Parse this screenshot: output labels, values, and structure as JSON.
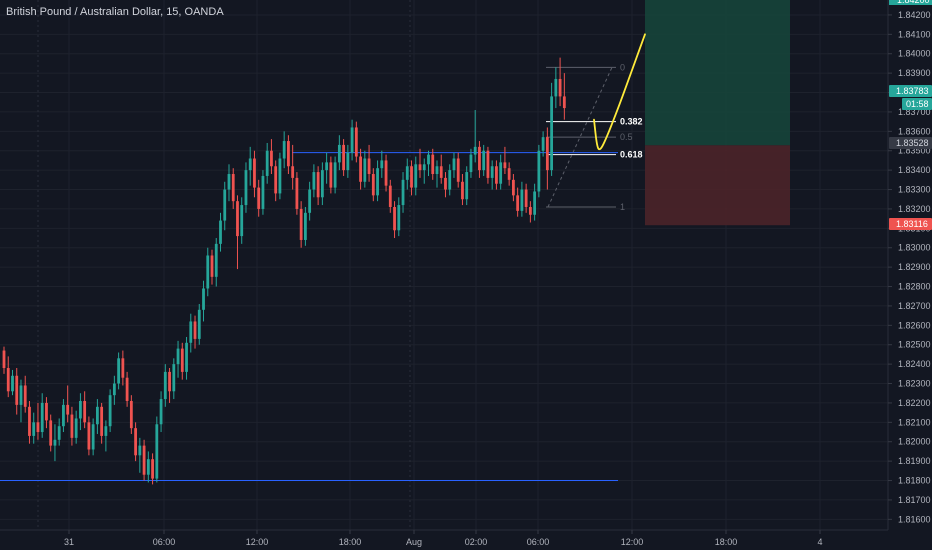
{
  "header": {
    "title": "British Pound / Australian Dollar, 15, OANDA"
  },
  "colors": {
    "background": "#131722",
    "up": "#26a69a",
    "down": "#ef5350",
    "grid": "#1e222d",
    "axis_text": "#b2b5be",
    "hline": "#2962ff",
    "target_zone": "#16443a",
    "stop_zone": "#4b2329",
    "sketch": "#ffeb3b"
  },
  "chart_data": {
    "type": "candlestick",
    "title": "British Pound / Australian Dollar, 15, OANDA",
    "symbol": "GBPAUD",
    "interval": "15",
    "source": "OANDA",
    "ylim": [
      1.8155,
      1.8428
    ],
    "y_ticks": [
      "1.84200",
      "1.84100",
      "1.84000",
      "1.83900",
      "1.83800",
      "1.83700",
      "1.83600",
      "1.83500",
      "1.83400",
      "1.83300",
      "1.83200",
      "1.83100",
      "1.83000",
      "1.82900",
      "1.82800",
      "1.82700",
      "1.82600",
      "1.82500",
      "1.82400",
      "1.82300",
      "1.82200",
      "1.82100",
      "1.82000",
      "1.81900",
      "1.81800",
      "1.81700",
      "1.81600"
    ],
    "x_ticks": [
      "31",
      "06:00",
      "12:00",
      "18:00",
      "Aug",
      "02:00",
      "06:00",
      "12:00",
      "18:00",
      "4"
    ],
    "price_badges": [
      {
        "label": "1.83783",
        "value": 1.83783,
        "color": "#26a69a",
        "text_color": "#ffffff"
      },
      {
        "label": "01:58",
        "value": 1.8372,
        "color": "#26a69a",
        "text_color": "#ffffff"
      },
      {
        "label": "1.83528",
        "value": 1.83528,
        "color": "#363a45",
        "text_color": "#d1d4dc"
      },
      {
        "label": "1.83116",
        "value": 1.83116,
        "color": "#ef5350",
        "text_color": "#ffffff"
      }
    ],
    "top_badge": "1.84200",
    "horizontal_lines": [
      {
        "value": 1.8349
      },
      {
        "value": 1.818
      }
    ],
    "fib_levels": [
      {
        "label": "0",
        "value": 1.8393
      },
      {
        "label": "0.382",
        "value": 1.8365,
        "emphasis": true
      },
      {
        "label": "0.5",
        "value": 1.8357,
        "emphasis": false
      },
      {
        "label": "0.618",
        "value": 1.8348,
        "emphasis": true
      },
      {
        "label": "1",
        "value": 1.8321
      }
    ],
    "position": {
      "entry": 1.83528,
      "target": 1.8428,
      "stop": 1.83116
    },
    "sketch_path": [
      [
        1.8366,
        0
      ],
      [
        1.8352,
        1
      ],
      [
        1.835,
        2
      ],
      [
        1.8356,
        3
      ],
      [
        1.8373,
        4
      ],
      [
        1.8393,
        5
      ],
      [
        1.841,
        6
      ]
    ],
    "ohlc": [
      [
        1.8247,
        1.8249,
        1.8235,
        1.8238
      ],
      [
        1.8238,
        1.8244,
        1.8223,
        1.8226
      ],
      [
        1.8226,
        1.8237,
        1.8224,
        1.8234
      ],
      [
        1.8234,
        1.8238,
        1.8214,
        1.8219
      ],
      [
        1.8219,
        1.8232,
        1.821,
        1.8229
      ],
      [
        1.8229,
        1.8234,
        1.8215,
        1.8218
      ],
      [
        1.8218,
        1.8221,
        1.8199,
        1.8203
      ],
      [
        1.8203,
        1.8215,
        1.8199,
        1.821
      ],
      [
        1.821,
        1.822,
        1.8201,
        1.8205
      ],
      [
        1.8205,
        1.8225,
        1.8202,
        1.822
      ],
      [
        1.822,
        1.8223,
        1.8207,
        1.8211
      ],
      [
        1.8211,
        1.8214,
        1.8195,
        1.8198
      ],
      [
        1.8198,
        1.8209,
        1.819,
        1.8201
      ],
      [
        1.8201,
        1.8212,
        1.8198,
        1.8208
      ],
      [
        1.8208,
        1.8222,
        1.8205,
        1.8219
      ],
      [
        1.8219,
        1.8229,
        1.821,
        1.8214
      ],
      [
        1.8214,
        1.8218,
        1.8198,
        1.8202
      ],
      [
        1.8202,
        1.8216,
        1.8199,
        1.8212
      ],
      [
        1.8212,
        1.8225,
        1.8206,
        1.8221
      ],
      [
        1.8221,
        1.8226,
        1.8207,
        1.821
      ],
      [
        1.821,
        1.8213,
        1.8193,
        1.8196
      ],
      [
        1.8196,
        1.8212,
        1.8193,
        1.8209
      ],
      [
        1.8209,
        1.8222,
        1.8204,
        1.8218
      ],
      [
        1.8218,
        1.822,
        1.8199,
        1.8203
      ],
      [
        1.8203,
        1.8211,
        1.8195,
        1.8208
      ],
      [
        1.8208,
        1.8227,
        1.8205,
        1.8224
      ],
      [
        1.8224,
        1.8234,
        1.8219,
        1.823
      ],
      [
        1.823,
        1.8246,
        1.8227,
        1.8243
      ],
      [
        1.8243,
        1.8247,
        1.8229,
        1.8233
      ],
      [
        1.8233,
        1.8236,
        1.8218,
        1.8221
      ],
      [
        1.8221,
        1.8224,
        1.8204,
        1.8207
      ],
      [
        1.8207,
        1.821,
        1.819,
        1.8193
      ],
      [
        1.8193,
        1.8202,
        1.8184,
        1.8198
      ],
      [
        1.8198,
        1.8201,
        1.818,
        1.8183
      ],
      [
        1.8183,
        1.8195,
        1.8179,
        1.8191
      ],
      [
        1.8191,
        1.8194,
        1.8178,
        1.8181
      ],
      [
        1.8181,
        1.8213,
        1.8179,
        1.8209
      ],
      [
        1.8209,
        1.8226,
        1.8205,
        1.8222
      ],
      [
        1.8222,
        1.824,
        1.8218,
        1.8236
      ],
      [
        1.8236,
        1.8238,
        1.822,
        1.8226
      ],
      [
        1.8226,
        1.8243,
        1.8222,
        1.824
      ],
      [
        1.824,
        1.8252,
        1.8233,
        1.8248
      ],
      [
        1.8248,
        1.8251,
        1.8232,
        1.8236
      ],
      [
        1.8236,
        1.8254,
        1.8232,
        1.8251
      ],
      [
        1.8251,
        1.8266,
        1.8246,
        1.8262
      ],
      [
        1.8262,
        1.8265,
        1.8248,
        1.8253
      ],
      [
        1.8253,
        1.8271,
        1.825,
        1.8268
      ],
      [
        1.8268,
        1.8283,
        1.8262,
        1.8279
      ],
      [
        1.8279,
        1.83,
        1.8275,
        1.8296
      ],
      [
        1.8296,
        1.8299,
        1.8281,
        1.8285
      ],
      [
        1.8285,
        1.8305,
        1.828,
        1.8302
      ],
      [
        1.8302,
        1.8318,
        1.8298,
        1.8314
      ],
      [
        1.8314,
        1.8334,
        1.8309,
        1.833
      ],
      [
        1.833,
        1.8343,
        1.8324,
        1.8338
      ],
      [
        1.8338,
        1.8341,
        1.832,
        1.8324
      ],
      [
        1.8324,
        1.8327,
        1.8289,
        1.8306
      ],
      [
        1.8306,
        1.8326,
        1.8302,
        1.8322
      ],
      [
        1.8322,
        1.8344,
        1.8318,
        1.834
      ],
      [
        1.834,
        1.8352,
        1.8332,
        1.8346
      ],
      [
        1.8346,
        1.835,
        1.8326,
        1.8331
      ],
      [
        1.8331,
        1.8335,
        1.8316,
        1.832
      ],
      [
        1.832,
        1.834,
        1.8317,
        1.8337
      ],
      [
        1.8337,
        1.8354,
        1.8333,
        1.835
      ],
      [
        1.835,
        1.8356,
        1.8338,
        1.8342
      ],
      [
        1.8342,
        1.8345,
        1.8324,
        1.8328
      ],
      [
        1.8328,
        1.8349,
        1.8325,
        1.8346
      ],
      [
        1.8346,
        1.836,
        1.8341,
        1.8355
      ],
      [
        1.8355,
        1.8358,
        1.8338,
        1.8342
      ],
      [
        1.8342,
        1.8353,
        1.833,
        1.8336
      ],
      [
        1.8336,
        1.8339,
        1.8317,
        1.832
      ],
      [
        1.832,
        1.8324,
        1.83,
        1.8304
      ],
      [
        1.8304,
        1.8321,
        1.8301,
        1.8318
      ],
      [
        1.8318,
        1.8334,
        1.8314,
        1.833
      ],
      [
        1.833,
        1.8343,
        1.8326,
        1.8339
      ],
      [
        1.8339,
        1.8342,
        1.8322,
        1.8326
      ],
      [
        1.8326,
        1.8344,
        1.8322,
        1.834
      ],
      [
        1.834,
        1.8349,
        1.8333,
        1.8344
      ],
      [
        1.8344,
        1.8347,
        1.8328,
        1.8331
      ],
      [
        1.8331,
        1.8347,
        1.8328,
        1.8344
      ],
      [
        1.8344,
        1.8358,
        1.834,
        1.8353
      ],
      [
        1.8353,
        1.8356,
        1.8337,
        1.834
      ],
      [
        1.834,
        1.8353,
        1.8336,
        1.8349
      ],
      [
        1.8349,
        1.8366,
        1.8345,
        1.8362
      ],
      [
        1.8362,
        1.8365,
        1.8344,
        1.8347
      ],
      [
        1.8347,
        1.8351,
        1.833,
        1.8334
      ],
      [
        1.8334,
        1.835,
        1.8331,
        1.8346
      ],
      [
        1.8346,
        1.8353,
        1.8334,
        1.8338
      ],
      [
        1.8338,
        1.8341,
        1.8324,
        1.8327
      ],
      [
        1.8327,
        1.8345,
        1.8324,
        1.8341
      ],
      [
        1.8341,
        1.835,
        1.8336,
        1.8345
      ],
      [
        1.8345,
        1.8348,
        1.8329,
        1.8332
      ],
      [
        1.8332,
        1.8335,
        1.8318,
        1.8321
      ],
      [
        1.8321,
        1.8324,
        1.8305,
        1.8309
      ],
      [
        1.8309,
        1.8326,
        1.8306,
        1.8322
      ],
      [
        1.8322,
        1.8339,
        1.8318,
        1.8335
      ],
      [
        1.8335,
        1.8346,
        1.833,
        1.8342
      ],
      [
        1.8342,
        1.8345,
        1.8327,
        1.8331
      ],
      [
        1.8331,
        1.8347,
        1.8327,
        1.8343
      ],
      [
        1.8343,
        1.8351,
        1.8336,
        1.834
      ],
      [
        1.834,
        1.8346,
        1.8333,
        1.8343
      ],
      [
        1.8343,
        1.835,
        1.8337,
        1.8348
      ],
      [
        1.8348,
        1.8351,
        1.8335,
        1.8338
      ],
      [
        1.8338,
        1.8345,
        1.8331,
        1.8342
      ],
      [
        1.8342,
        1.8348,
        1.8333,
        1.8336
      ],
      [
        1.8336,
        1.8339,
        1.8326,
        1.833
      ],
      [
        1.833,
        1.8343,
        1.8327,
        1.834
      ],
      [
        1.834,
        1.8349,
        1.8336,
        1.8346
      ],
      [
        1.8346,
        1.8349,
        1.8331,
        1.8334
      ],
      [
        1.8334,
        1.8338,
        1.8322,
        1.8325
      ],
      [
        1.8325,
        1.8342,
        1.8322,
        1.8339
      ],
      [
        1.8339,
        1.8351,
        1.8336,
        1.8348
      ],
      [
        1.8348,
        1.8371,
        1.8344,
        1.8352
      ],
      [
        1.8352,
        1.8355,
        1.8336,
        1.834
      ],
      [
        1.834,
        1.8353,
        1.8337,
        1.835
      ],
      [
        1.835,
        1.8352,
        1.8333,
        1.8336
      ],
      [
        1.8336,
        1.8345,
        1.833,
        1.8342
      ],
      [
        1.8342,
        1.8345,
        1.833,
        1.8333
      ],
      [
        1.8333,
        1.8348,
        1.833,
        1.8344
      ],
      [
        1.8344,
        1.8352,
        1.8338,
        1.8341
      ],
      [
        1.8341,
        1.8344,
        1.8332,
        1.8335
      ],
      [
        1.8335,
        1.8338,
        1.8324,
        1.8327
      ],
      [
        1.8327,
        1.8331,
        1.8316,
        1.8319
      ],
      [
        1.8319,
        1.8334,
        1.8316,
        1.833
      ],
      [
        1.833,
        1.8333,
        1.8318,
        1.8321
      ],
      [
        1.8321,
        1.8324,
        1.8313,
        1.8317
      ],
      [
        1.8317,
        1.8333,
        1.8314,
        1.8329
      ],
      [
        1.8329,
        1.8353,
        1.8326,
        1.835
      ],
      [
        1.835,
        1.836,
        1.8347,
        1.8357
      ],
      [
        1.8357,
        1.8362,
        1.833,
        1.834
      ],
      [
        1.834,
        1.8385,
        1.8337,
        1.8378
      ],
      [
        1.8378,
        1.8393,
        1.8372,
        1.8387
      ],
      [
        1.8387,
        1.8398,
        1.8373,
        1.8378
      ],
      [
        1.8378,
        1.839,
        1.8366,
        1.8372
      ]
    ]
  }
}
